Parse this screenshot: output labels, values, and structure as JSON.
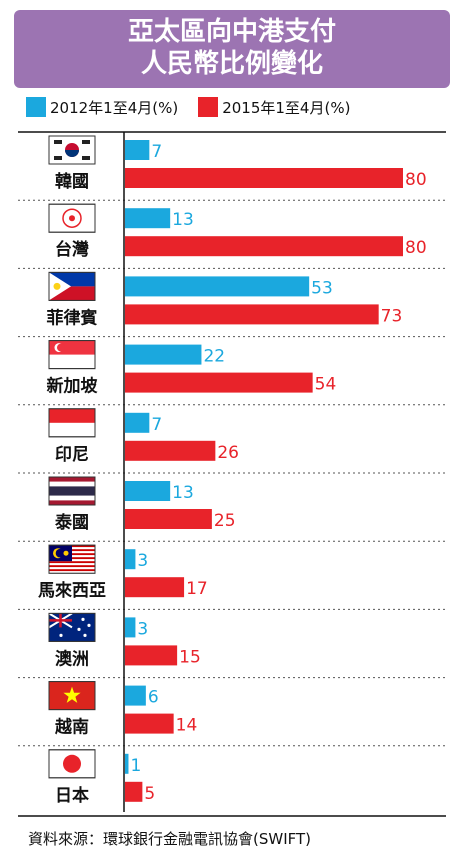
{
  "title_line1": "亞太區向中港支付",
  "title_line2": "人民幣比例變化",
  "legend": [
    {
      "label": "2012年1至4月(%)",
      "color": "#1ba8de"
    },
    {
      "label": "2015年1至4月(%)",
      "color": "#e8232a"
    }
  ],
  "source": "資料來源：環球銀行金融電訊協會(SWIFT)",
  "chart_data": {
    "type": "bar",
    "orientation": "horizontal",
    "categories": [
      "韓國",
      "台灣",
      "菲律賓",
      "新加坡",
      "印尼",
      "泰國",
      "馬來西亞",
      "澳洲",
      "越南",
      "日本"
    ],
    "series": [
      {
        "name": "2012年1至4月(%)",
        "color": "#1ba8de",
        "values": [
          7,
          13,
          53,
          22,
          7,
          13,
          3,
          3,
          6,
          1
        ]
      },
      {
        "name": "2015年1至4月(%)",
        "color": "#e8232a",
        "values": [
          80,
          80,
          73,
          54,
          26,
          25,
          17,
          15,
          14,
          5
        ]
      }
    ],
    "flags": [
      "korea-flag-icon",
      "taiwan-flag-icon",
      "philippines-flag-icon",
      "singapore-flag-icon",
      "indonesia-flag-icon",
      "thailand-flag-icon",
      "malaysia-flag-icon",
      "australia-flag-icon",
      "vietnam-flag-icon",
      "japan-flag-icon"
    ],
    "xlim": [
      0,
      80
    ],
    "grid": false
  }
}
